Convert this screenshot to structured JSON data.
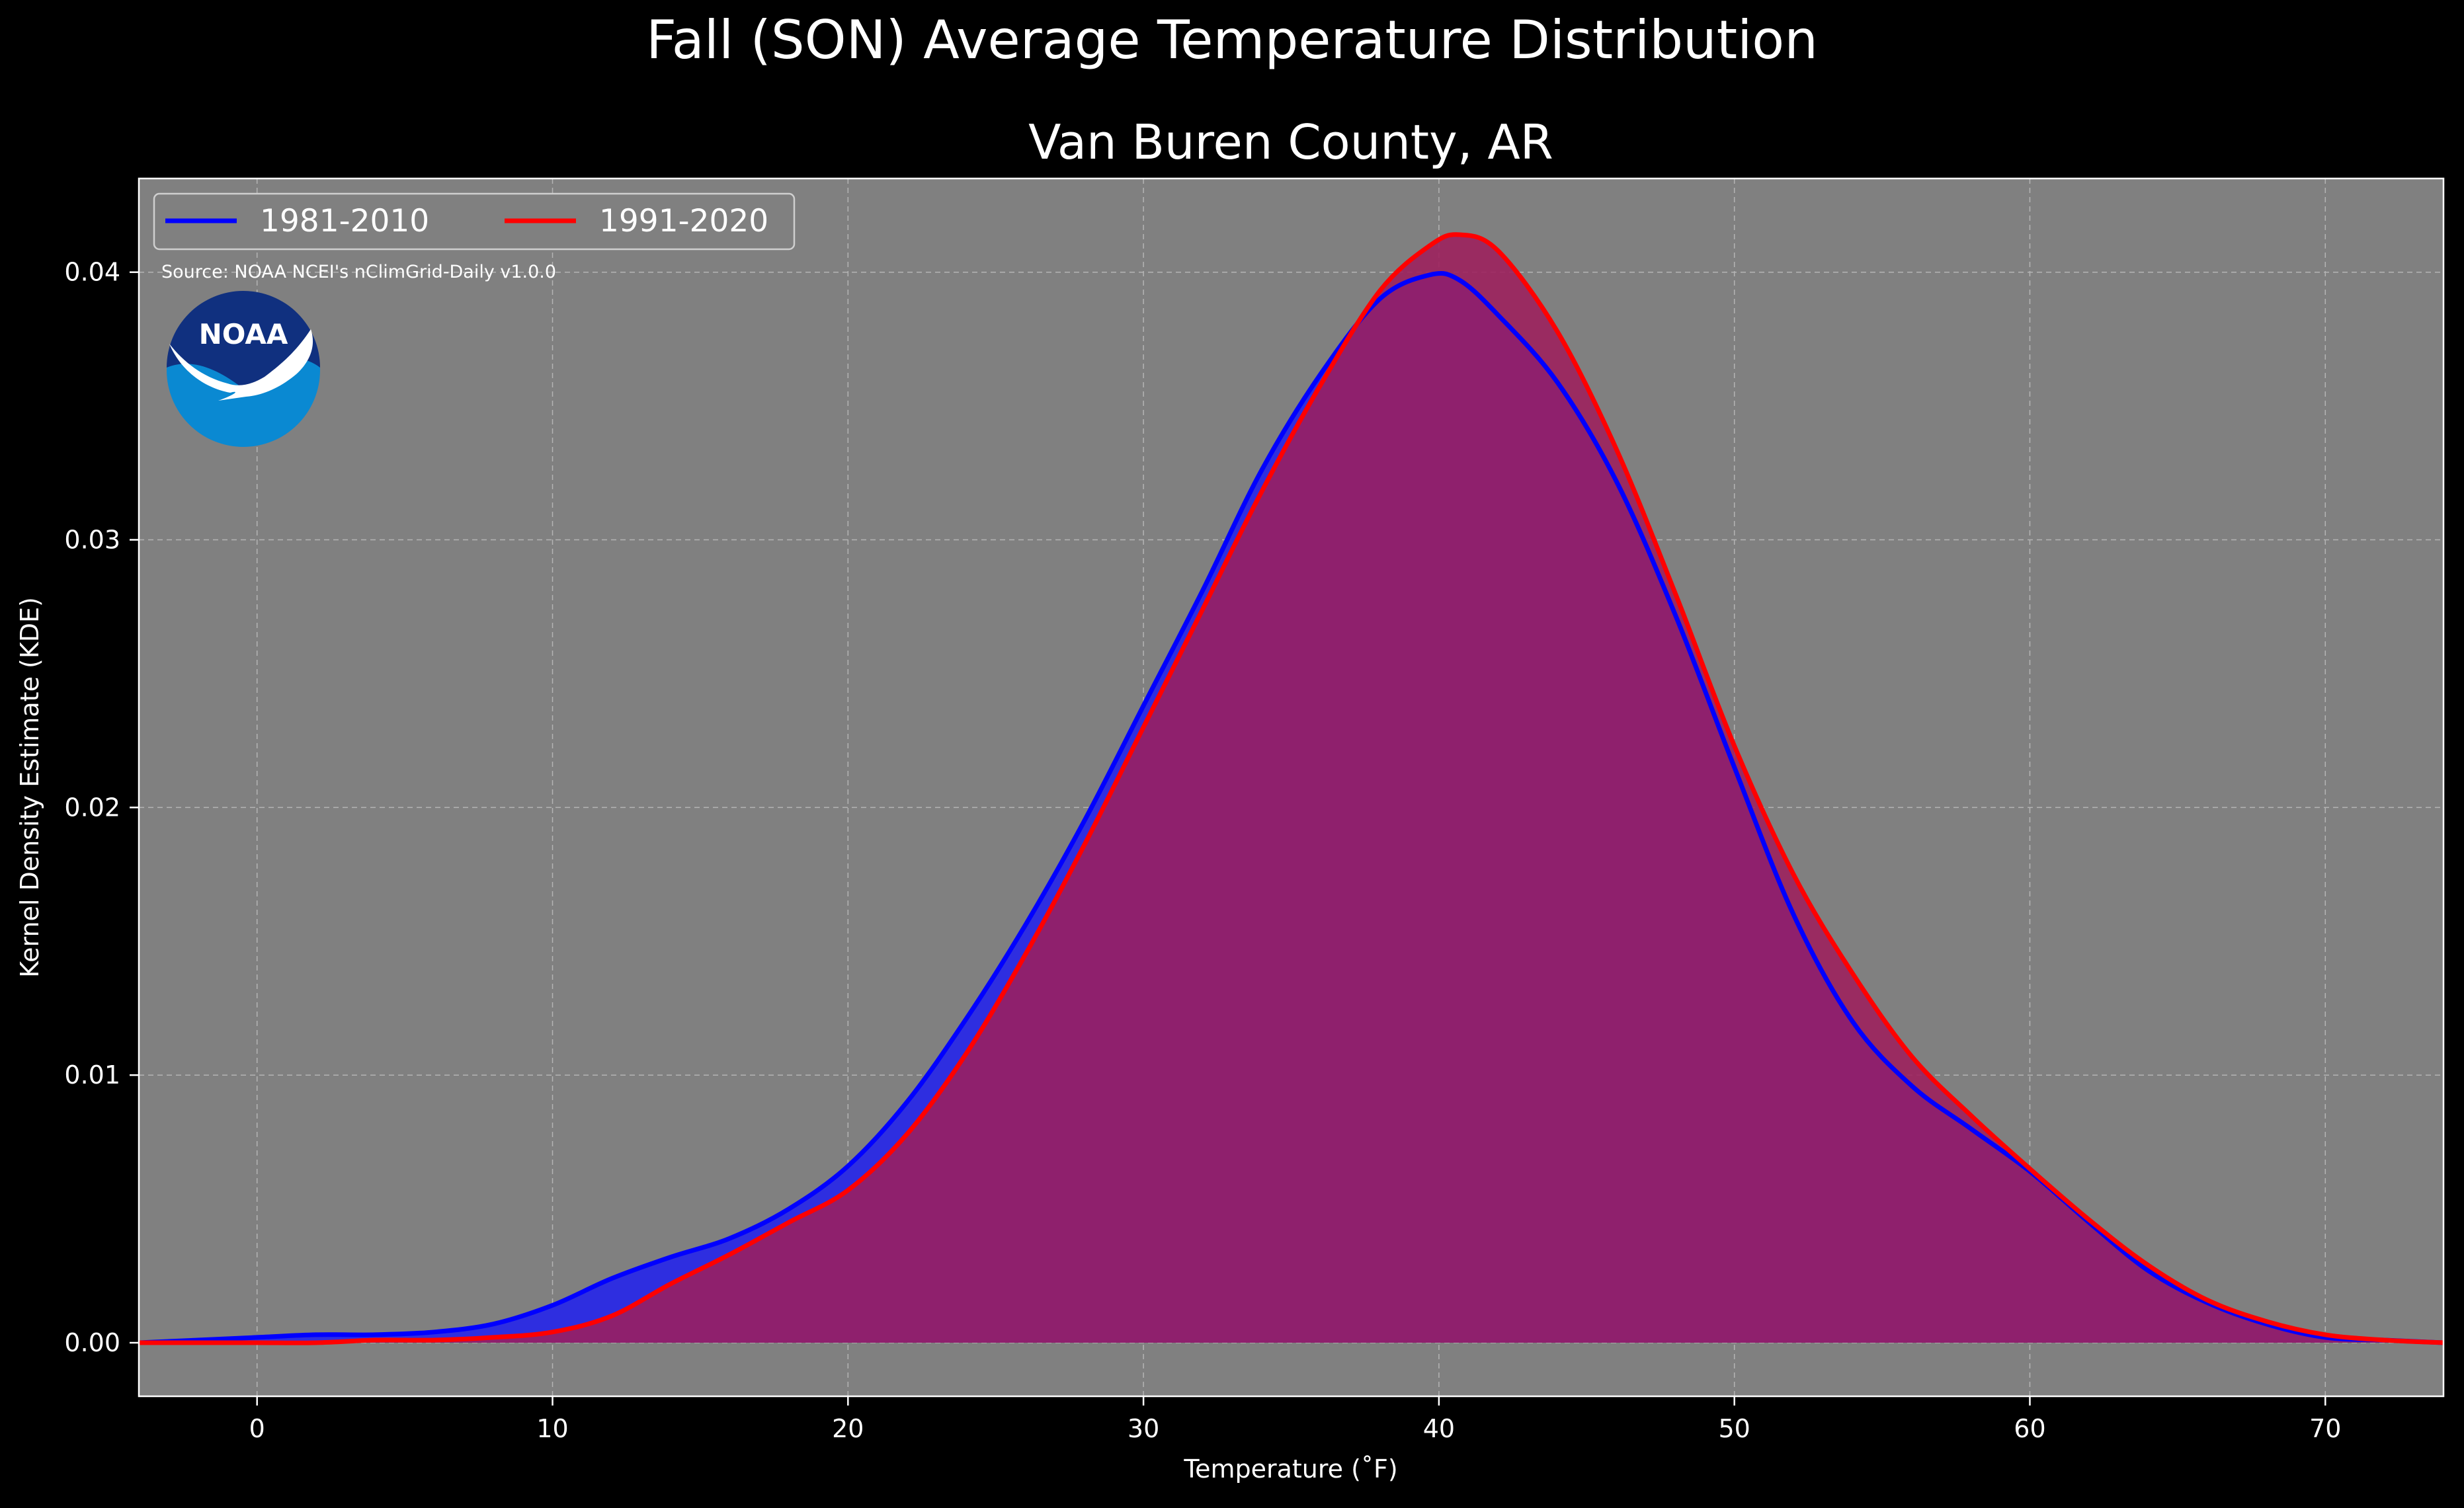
{
  "chart_data": {
    "type": "area",
    "title": "Fall (SON) Average Temperature Distribution",
    "subtitle": "Van Buren County, AR",
    "xlabel": "Temperature (˚F)",
    "ylabel": "Kernel Density Estimate (KDE)",
    "source": "Source: NOAA NCEI's nClimGrid-Daily v1.0.0",
    "logo_text": "NOAA",
    "xlim": [
      -4,
      74
    ],
    "ylim": [
      -0.002,
      0.0435
    ],
    "x_ticks": [
      0,
      10,
      20,
      30,
      40,
      50,
      60,
      70
    ],
    "y_ticks": [
      0.0,
      0.01,
      0.02,
      0.03,
      0.04
    ],
    "y_tick_labels": [
      "0.00",
      "0.01",
      "0.02",
      "0.03",
      "0.04"
    ],
    "grid": true,
    "legend_position": "top-left",
    "x": [
      -4,
      -2,
      0,
      2,
      4,
      6,
      8,
      10,
      12,
      14,
      16,
      18,
      20,
      22,
      24,
      26,
      28,
      30,
      32,
      34,
      36,
      38,
      39.7,
      40.7,
      42,
      44,
      46,
      48,
      50,
      52,
      54,
      56,
      58,
      60,
      62,
      64,
      66,
      68,
      70,
      72,
      74
    ],
    "series": [
      {
        "name": "1981-2010",
        "color": "#0000ff",
        "values": [
          0.0,
          0.0001,
          0.0002,
          0.0003,
          0.0003,
          0.0004,
          0.0007,
          0.0014,
          0.0024,
          0.0032,
          0.0039,
          0.005,
          0.0066,
          0.009,
          0.0121,
          0.0156,
          0.0195,
          0.0238,
          0.0281,
          0.0326,
          0.0362,
          0.039,
          0.0399,
          0.0397,
          0.0384,
          0.0359,
          0.0322,
          0.0272,
          0.0215,
          0.016,
          0.012,
          0.0096,
          0.008,
          0.0064,
          0.0045,
          0.0027,
          0.0015,
          0.0007,
          0.0002,
          0.0001,
          0.0
        ]
      },
      {
        "name": "1991-2020",
        "color": "#ff0000",
        "values": [
          0.0,
          0.0,
          0.0,
          0.0,
          0.0001,
          0.0001,
          0.0002,
          0.0004,
          0.001,
          0.0022,
          0.0033,
          0.0045,
          0.0057,
          0.0078,
          0.0108,
          0.0145,
          0.0186,
          0.023,
          0.0274,
          0.0318,
          0.0358,
          0.0393,
          0.041,
          0.0414,
          0.0408,
          0.0378,
          0.0334,
          0.028,
          0.0223,
          0.0175,
          0.0138,
          0.0107,
          0.0085,
          0.0065,
          0.0046,
          0.0029,
          0.0016,
          0.0008,
          0.0003,
          0.0001,
          0.0
        ]
      }
    ]
  },
  "colors": {
    "figure_bg": "#000000",
    "plot_bg": "#808080",
    "fill_1981": "#2e2ee0",
    "fill_1991": "#9d1f5c",
    "noaa_dark": "#10307f",
    "noaa_light": "#0a89d2"
  }
}
